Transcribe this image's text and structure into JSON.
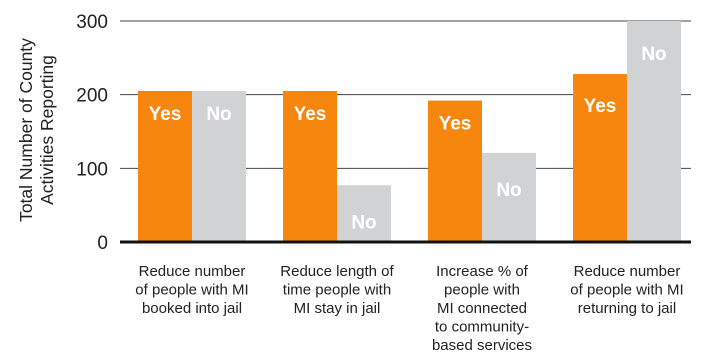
{
  "chart_data": {
    "type": "bar",
    "ylabel_lines": [
      "Total Number of County",
      "Activities Reporting"
    ],
    "ylim": [
      0,
      300
    ],
    "yticks": [
      "0",
      "100",
      "200",
      "300"
    ],
    "grid": true,
    "categories": [
      {
        "label_lines": [
          "Reduce number",
          "of people with MI",
          "booked into jail"
        ]
      },
      {
        "label_lines": [
          "Reduce length of",
          "time people with",
          "MI stay in jail"
        ]
      },
      {
        "label_lines": [
          "Increase % of",
          "people with",
          "MI connected",
          "to community-",
          "based services"
        ]
      },
      {
        "label_lines": [
          "Reduce number",
          "of people with MI",
          "returning to jail"
        ]
      }
    ],
    "series": [
      {
        "name": "Yes",
        "color": "#f7860f",
        "values": [
          205,
          205,
          192,
          228
        ]
      },
      {
        "name": "No",
        "color": "#d1d2d4",
        "values": [
          205,
          77,
          121,
          300
        ]
      }
    ]
  }
}
